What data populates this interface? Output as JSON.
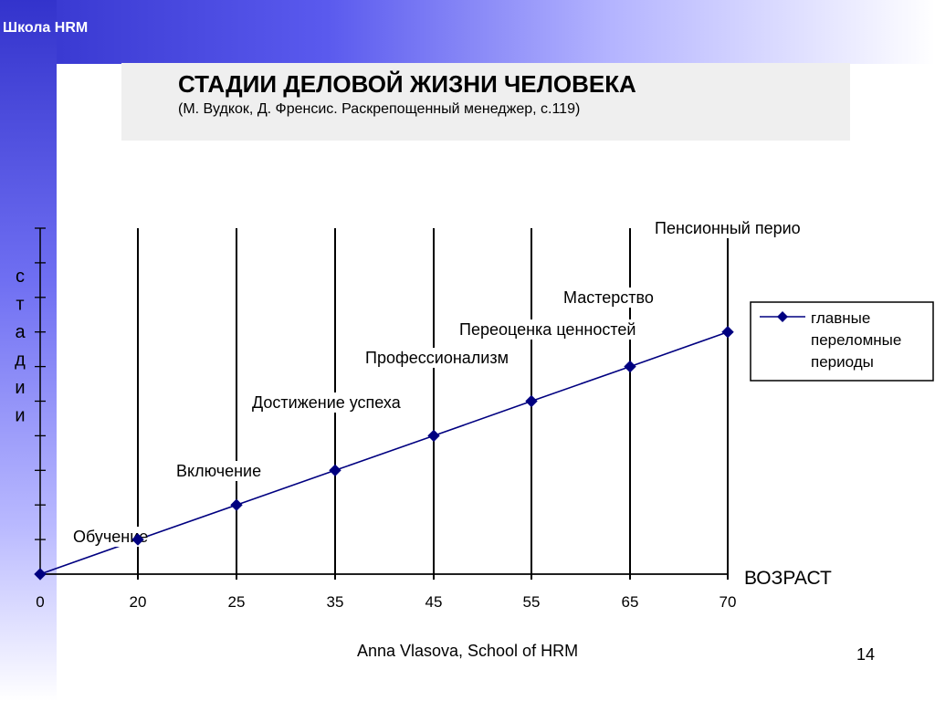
{
  "brand": "Школа HRM",
  "title": "СТАДИИ ДЕЛОВОЙ ЖИЗНИ ЧЕЛОВЕКА",
  "subtitle": "(М. Вудкок, Д. Френсис. Раскрепощенный менеджер, с.119)",
  "footer": "Anna Vlasova, School of HRM",
  "page_number": "14",
  "chart_data": {
    "type": "line",
    "categories": [
      "0",
      "20",
      "25",
      "35",
      "45",
      "55",
      "65",
      "70"
    ],
    "values": [
      0,
      1,
      2,
      3,
      4,
      5,
      6,
      7
    ],
    "stage_labels": [
      "Обучение",
      "Включение",
      "Достижение успеха",
      "Профессионализм",
      "Переоценка ценностей",
      "Мастерство",
      "Пенсионный перио"
    ],
    "xlabel": "ВОЗРАСТ",
    "ylabel": "стадии",
    "series": [
      {
        "name": "главные переломные периоды",
        "values": [
          0,
          1,
          2,
          3,
          4,
          5,
          6,
          7
        ]
      }
    ],
    "legend_lines": [
      "главные",
      "переломные",
      "периоды"
    ],
    "legend": "right",
    "ylim": [
      0,
      10
    ],
    "colors": {
      "line": "#000080",
      "axis": "#000000"
    }
  }
}
